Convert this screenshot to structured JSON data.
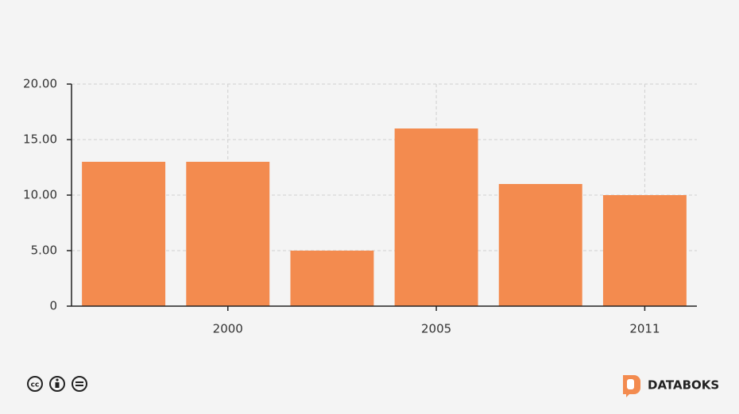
{
  "chart_data": {
    "type": "bar",
    "categories": [
      null,
      "2000",
      null,
      "2005",
      null,
      "2011"
    ],
    "values": [
      13,
      13,
      5,
      16,
      11,
      10
    ],
    "color": "#f38b4f",
    "ylim": [
      0,
      20
    ],
    "yticks": [
      0,
      {
        "value": 5,
        "label": "5.00"
      },
      {
        "value": 10,
        "label": "10.00"
      },
      {
        "value": 15,
        "label": "15.00"
      },
      {
        "value": 20,
        "label": "20.00"
      }
    ],
    "grid": true
  },
  "footer": {
    "brand": "DATABOKS"
  }
}
